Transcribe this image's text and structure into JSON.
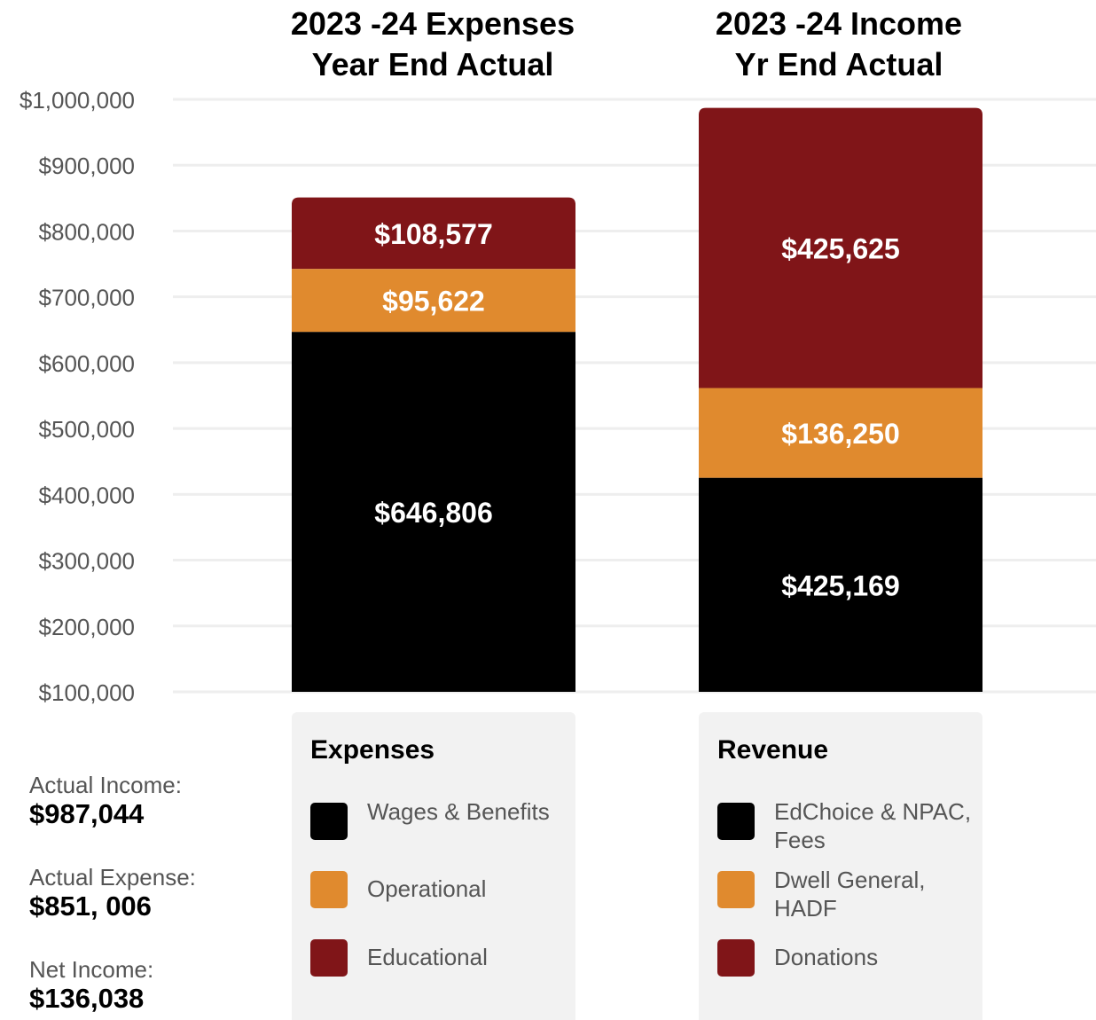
{
  "colors": {
    "black": "#000000",
    "orange": "#e08a2e",
    "darkred": "#801518",
    "grid": "#eeeeee",
    "axis_text": "#555555"
  },
  "titles": {
    "expenses_line1": "2023 -24 Expenses",
    "expenses_line2": "Year End Actual",
    "income_line1": "2023 -24 Income",
    "income_line2": "Yr End Actual"
  },
  "chart_data": {
    "type": "bar",
    "stacked": true,
    "categories": [
      "2023 -24 Expenses Year End Actual",
      "2023 -24 Income Yr End Actual"
    ],
    "ylim": [
      100000,
      1000000
    ],
    "yticks": [
      100000,
      200000,
      300000,
      400000,
      500000,
      600000,
      700000,
      800000,
      900000,
      1000000
    ],
    "ytick_labels": [
      "$100,000",
      "$200,000",
      "$300,000",
      "$400,000",
      "$500,000",
      "$600,000",
      "$700,000",
      "$800,000",
      "$900,000",
      "$1,000,000"
    ],
    "grid": true,
    "bars": [
      {
        "segments": [
          {
            "value": 646806,
            "label": "$646,806",
            "color": "#000000"
          },
          {
            "value": 95622,
            "label": "$95,622",
            "color": "#e08a2e"
          },
          {
            "value": 108577,
            "label": "$108,577",
            "color": "#801518"
          }
        ]
      },
      {
        "segments": [
          {
            "value": 425169,
            "label": "$425,169",
            "color": "#000000"
          },
          {
            "value": 136250,
            "label": "$136,250",
            "color": "#e08a2e"
          },
          {
            "value": 425625,
            "label": "$425,625",
            "color": "#801518"
          }
        ]
      }
    ]
  },
  "legends": {
    "expenses": {
      "heading": "Expenses",
      "items": [
        {
          "label": "Wages & Benefits",
          "color": "#000000"
        },
        {
          "label": "Operational",
          "color": "#e08a2e"
        },
        {
          "label": "Educational",
          "color": "#801518"
        }
      ]
    },
    "revenue": {
      "heading": "Revenue",
      "items": [
        {
          "label": "EdChoice & NPAC, Fees",
          "color": "#000000"
        },
        {
          "label": "Dwell General, HADF",
          "color": "#e08a2e"
        },
        {
          "label": "Donations",
          "color": "#801518"
        }
      ]
    }
  },
  "summary": {
    "income_label": "Actual Income:",
    "income_value": "$987,044",
    "expense_label": "Actual Expense:",
    "expense_value": "$851, 006",
    "net_label": "Net Income:",
    "net_value": "$136,038"
  }
}
